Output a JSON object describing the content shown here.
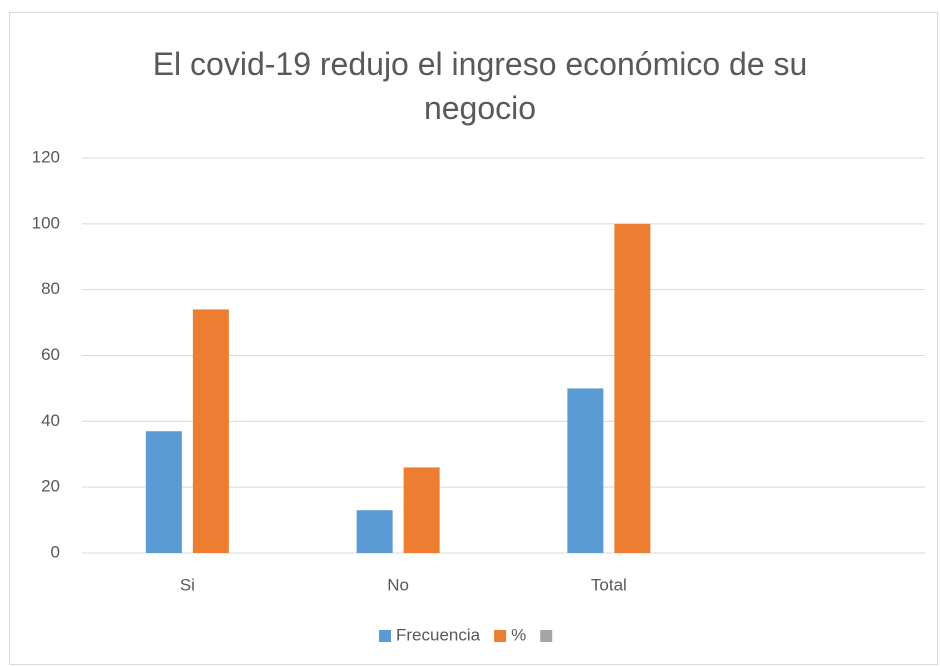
{
  "chart_data": {
    "type": "bar",
    "title": "El covid-19 redujo el ingreso económico de su negocio",
    "categories": [
      "Si",
      "No",
      "Total",
      null
    ],
    "series": [
      {
        "name": "Frecuencia",
        "color": "#5b9bd5",
        "values": [
          37,
          13,
          50,
          null
        ]
      },
      {
        "name": "%",
        "color": "#ed7d31",
        "values": [
          74,
          26,
          100,
          null
        ]
      },
      {
        "name": null,
        "color": "#a5a5a5",
        "values": [
          null,
          null,
          null,
          null
        ]
      }
    ],
    "ylim": [
      0,
      120
    ],
    "yticks": [
      0,
      20,
      40,
      60,
      80,
      100,
      120
    ],
    "grid": true,
    "legend": "bottom"
  }
}
